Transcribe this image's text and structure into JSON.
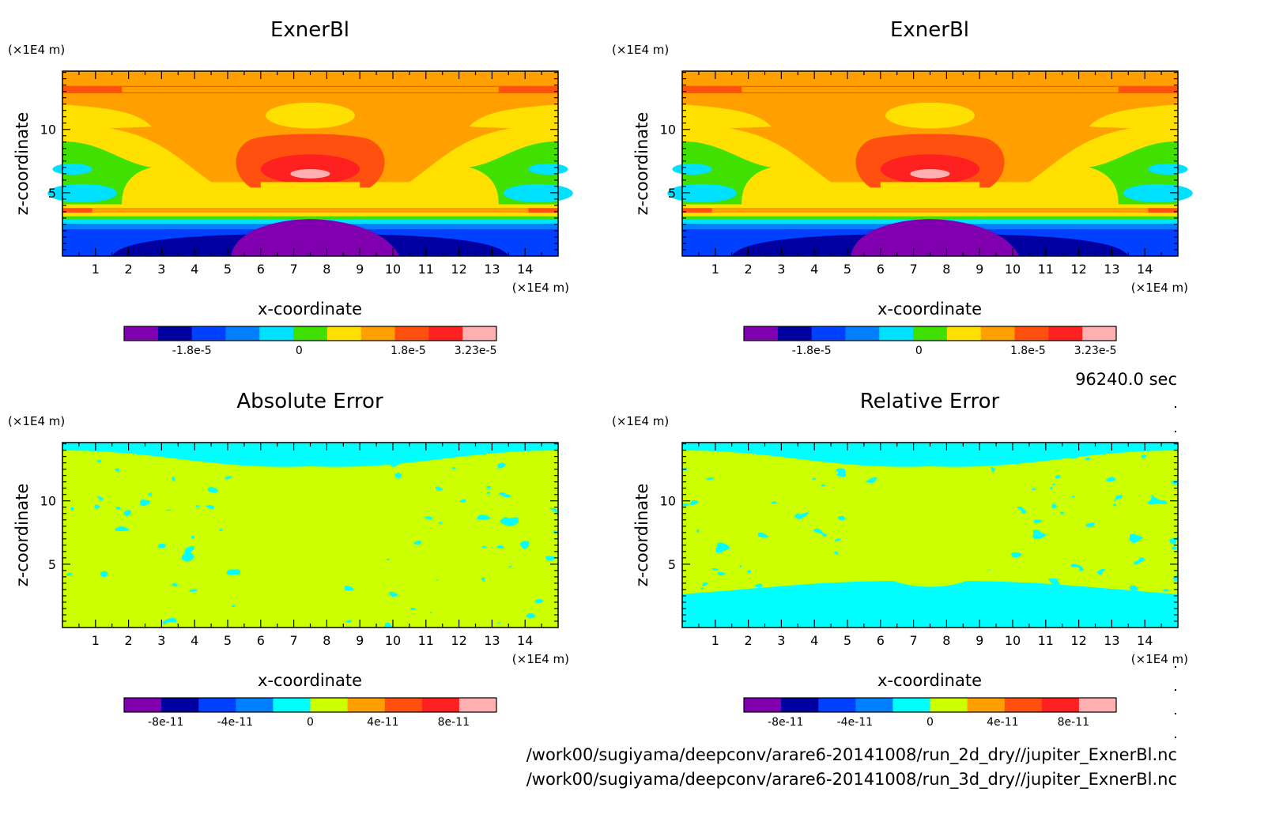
{
  "chart_data": [
    {
      "type": "heatmap",
      "title": "ExnerBl",
      "xlabel": "x-coordinate",
      "ylabel": "z-coordinate",
      "x_unit": "(×1E4 m)",
      "y_unit": "(×1E4 m)",
      "xlim": [
        0,
        15
      ],
      "ylim": [
        0,
        14.6
      ],
      "x_ticks": [
        "1",
        "2",
        "3",
        "4",
        "5",
        "6",
        "7",
        "8",
        "9",
        "10",
        "11",
        "12",
        "13",
        "14"
      ],
      "y_ticks": [
        "5",
        "10"
      ],
      "colorbar": {
        "colors": [
          "#8000b0",
          "#0000a0",
          "#0040ff",
          "#0080ff",
          "#00e0ff",
          "#40e000",
          "#ffe000",
          "#ffa000",
          "#ff5010",
          "#ff2020",
          "#ffb0b0"
        ],
        "labels": [
          "-1.8e-5",
          "0",
          "1.8e-5",
          "3.23e-5"
        ]
      }
    },
    {
      "type": "heatmap",
      "title": "ExnerBl",
      "xlabel": "x-coordinate",
      "ylabel": "z-coordinate",
      "x_unit": "(×1E4 m)",
      "y_unit": "(×1E4 m)",
      "xlim": [
        0,
        15
      ],
      "ylim": [
        0,
        14.6
      ],
      "x_ticks": [
        "1",
        "2",
        "3",
        "4",
        "5",
        "6",
        "7",
        "8",
        "9",
        "10",
        "11",
        "12",
        "13",
        "14"
      ],
      "y_ticks": [
        "5",
        "10"
      ],
      "colorbar": {
        "colors": [
          "#8000b0",
          "#0000a0",
          "#0040ff",
          "#0080ff",
          "#00e0ff",
          "#40e000",
          "#ffe000",
          "#ffa000",
          "#ff5010",
          "#ff2020",
          "#ffb0b0"
        ],
        "labels": [
          "-1.8e-5",
          "0",
          "1.8e-5",
          "3.23e-5"
        ]
      }
    },
    {
      "type": "heatmap",
      "title": "Absolute Error",
      "xlabel": "x-coordinate",
      "ylabel": "z-coordinate",
      "x_unit": "(×1E4 m)",
      "y_unit": "(×1E4 m)",
      "xlim": [
        0,
        15
      ],
      "ylim": [
        0,
        14.6
      ],
      "x_ticks": [
        "1",
        "2",
        "3",
        "4",
        "5",
        "6",
        "7",
        "8",
        "9",
        "10",
        "11",
        "12",
        "13",
        "14"
      ],
      "y_ticks": [
        "5",
        "10"
      ],
      "colorbar": {
        "colors": [
          "#8000b0",
          "#0000a0",
          "#0040ff",
          "#0080ff",
          "#00ffff",
          "#ccff00",
          "#ffa000",
          "#ff5010",
          "#ff2020",
          "#ffb0b0"
        ],
        "labels": [
          "-8e-11",
          "-4e-11",
          "0",
          "4e-11",
          "8e-11"
        ]
      }
    },
    {
      "type": "heatmap",
      "title": "Relative Error",
      "xlabel": "x-coordinate",
      "ylabel": "z-coordinate",
      "x_unit": "(×1E4 m)",
      "y_unit": "(×1E4 m)",
      "xlim": [
        0,
        15
      ],
      "ylim": [
        0,
        14.6
      ],
      "x_ticks": [
        "1",
        "2",
        "3",
        "4",
        "5",
        "6",
        "7",
        "8",
        "9",
        "10",
        "11",
        "12",
        "13",
        "14"
      ],
      "y_ticks": [
        "5",
        "10"
      ],
      "colorbar": {
        "colors": [
          "#8000b0",
          "#0000a0",
          "#0040ff",
          "#0080ff",
          "#00ffff",
          "#ccff00",
          "#ffa000",
          "#ff5010",
          "#ff2020",
          "#ffb0b0"
        ],
        "labels": [
          "-8e-11",
          "-4e-11",
          "0",
          "4e-11",
          "8e-11"
        ]
      }
    }
  ],
  "info": {
    "time": "96240.0 sec",
    "file1": "/work00/sugiyama/deepconv/arare6-20141008/run_2d_dry//jupiter_ExnerBl.nc",
    "file2": "/work00/sugiyama/deepconv/arare6-20141008/run_3d_dry//jupiter_ExnerBl.nc"
  }
}
